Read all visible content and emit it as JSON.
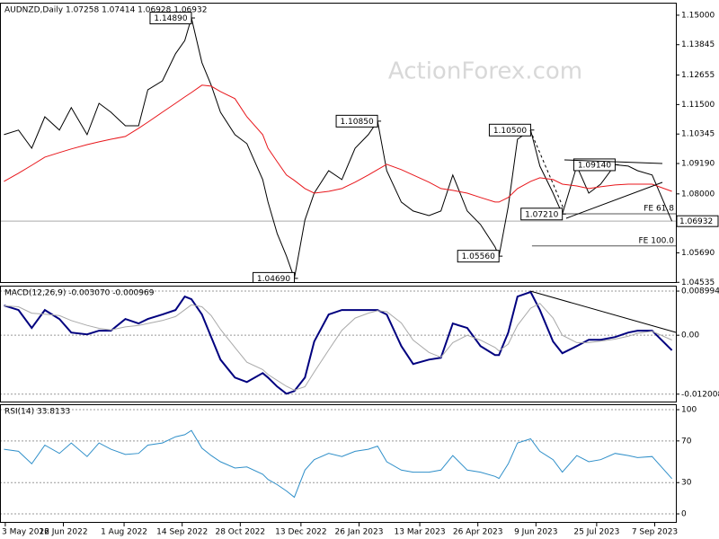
{
  "chart_data": [
    {
      "type": "line",
      "title": "AUDNZD,Daily  1.07258 1.07414 1.06928 1.06932",
      "watermark": "ActionForex.com",
      "x": [
        "2022-05-02",
        "2022-05-13",
        "2022-05-23",
        "2022-06-02",
        "2022-06-13",
        "2022-06-22",
        "2022-07-04",
        "2022-07-13",
        "2022-07-22",
        "2022-08-02",
        "2022-08-12",
        "2022-08-19",
        "2022-08-30",
        "2022-09-09",
        "2022-09-16",
        "2022-09-21",
        "2022-09-29",
        "2022-10-06",
        "2022-10-13",
        "2022-10-24",
        "2022-11-02",
        "2022-11-14",
        "2022-11-18",
        "2022-11-25",
        "2022-12-02",
        "2022-12-08",
        "2022-12-16",
        "2022-12-23",
        "2023-01-03",
        "2023-01-13",
        "2023-01-23",
        "2023-02-02",
        "2023-02-09",
        "2023-02-16",
        "2023-02-27",
        "2023-03-08",
        "2023-03-20",
        "2023-03-29",
        "2023-04-07",
        "2023-04-18",
        "2023-04-28",
        "2023-05-09",
        "2023-05-12",
        "2023-05-19",
        "2023-05-26",
        "2023-06-05",
        "2023-06-12",
        "2023-06-22",
        "2023-06-29",
        "2023-07-10",
        "2023-07-19",
        "2023-07-28",
        "2023-08-08",
        "2023-08-18",
        "2023-08-25",
        "2023-09-05",
        "2023-09-20"
      ],
      "series": [
        {
          "color": "#000000",
          "values": [
            1.1032,
            1.105,
            1.0979,
            1.1102,
            1.105,
            1.1138,
            1.1032,
            1.1155,
            1.112,
            1.1067,
            1.1067,
            1.1208,
            1.1243,
            1.1349,
            1.1401,
            1.1489,
            1.1314,
            1.1226,
            1.112,
            1.1032,
            1.0997,
            1.0856,
            1.0768,
            1.0645,
            1.0557,
            1.0469,
            1.0698,
            1.0803,
            1.0891,
            1.0856,
            1.0979,
            1.1032,
            1.1085,
            1.0891,
            1.0768,
            1.0733,
            1.0715,
            1.0733,
            1.0874,
            1.0733,
            1.068,
            1.0592,
            1.0556,
            1.075,
            1.1014,
            1.105,
            1.0909,
            1.0803,
            1.0721,
            1.0909,
            1.0803,
            1.0838,
            1.0914,
            1.0909,
            1.0891,
            1.0874,
            1.06932
          ]
        },
        {
          "color": "#e8161b",
          "values": [
            1.0849,
            1.0881,
            1.0912,
            1.0944,
            1.0962,
            1.0976,
            1.0993,
            1.1004,
            1.1014,
            1.1025,
            1.1057,
            1.1081,
            1.112,
            1.1155,
            1.118,
            1.1197,
            1.1226,
            1.1222,
            1.1201,
            1.1173,
            1.1102,
            1.1032,
            1.0979,
            1.0926,
            1.0874,
            1.0853,
            1.0821,
            1.0803,
            1.081,
            1.0821,
            1.0846,
            1.0874,
            1.0895,
            1.0916,
            1.0895,
            1.0874,
            1.0846,
            1.0821,
            1.0814,
            1.0803,
            1.0786,
            1.0768,
            1.0768,
            1.0786,
            1.0821,
            1.0849,
            1.0863,
            1.0856,
            1.0838,
            1.0831,
            1.0821,
            1.0828,
            1.0835,
            1.0838,
            1.0838,
            1.0838,
            1.081
          ]
        }
      ],
      "last_price": 1.06932,
      "annotations": [
        {
          "x": "2022-09-21",
          "value": 1.1489,
          "label": "1.14890"
        },
        {
          "x": "2022-12-08",
          "value": 1.0469,
          "label": "1.04690"
        },
        {
          "x": "2023-02-09",
          "value": 1.1085,
          "label": "1.10850"
        },
        {
          "x": "2023-05-12",
          "value": 1.0556,
          "label": "1.05560"
        },
        {
          "x": "2023-06-05",
          "value": 1.105,
          "label": "1.10500"
        },
        {
          "x": "2023-06-29",
          "value": 1.0721,
          "label": "1.07210"
        },
        {
          "x": "2023-08-08",
          "value": 1.0914,
          "label": "1.09140"
        }
      ],
      "fe_levels": [
        {
          "x": "2023-06-28",
          "value": 1.0722,
          "text": "FE 61.8"
        },
        {
          "x": "2023-06-06",
          "value": 1.0596,
          "text": "FE 100.0"
        }
      ],
      "xlim": [
        "2022-04-29",
        "2023-09-23"
      ],
      "ylim": [
        1.0451,
        1.1549
      ],
      "yticks": [
        {
          "value": 1.15,
          "label": "1.15000"
        },
        1.13845,
        1.12655,
        {
          "value": 1.115,
          "label": "1.11500"
        },
        1.10345,
        {
          "value": 1.0919,
          "label": "1.09190"
        },
        {
          "value": 1.08,
          "label": "1.08000"
        },
        {
          "value": 1.0569,
          "label": "1.05690"
        },
        1.04535
      ],
      "grid": false
    },
    {
      "type": "line",
      "title": "MACD(12,26,9) -0.003070 -0.000969",
      "x": [
        "2022-05-02",
        "2022-05-13",
        "2022-05-23",
        "2022-06-02",
        "2022-06-13",
        "2022-06-22",
        "2022-07-04",
        "2022-07-13",
        "2022-07-22",
        "2022-08-02",
        "2022-08-12",
        "2022-08-19",
        "2022-08-30",
        "2022-09-09",
        "2022-09-16",
        "2022-09-21",
        "2022-09-29",
        "2022-10-06",
        "2022-10-13",
        "2022-10-24",
        "2022-11-02",
        "2022-11-14",
        "2022-11-18",
        "2022-11-25",
        "2022-12-02",
        "2022-12-08",
        "2022-12-16",
        "2022-12-23",
        "2023-01-03",
        "2023-01-13",
        "2023-01-23",
        "2023-02-02",
        "2023-02-09",
        "2023-02-16",
        "2023-02-27",
        "2023-03-08",
        "2023-03-20",
        "2023-03-29",
        "2023-04-07",
        "2023-04-18",
        "2023-04-28",
        "2023-05-09",
        "2023-05-12",
        "2023-05-19",
        "2023-05-26",
        "2023-06-05",
        "2023-06-12",
        "2023-06-22",
        "2023-06-29",
        "2023-07-10",
        "2023-07-19",
        "2023-07-28",
        "2023-08-08",
        "2023-08-18",
        "2023-08-25",
        "2023-09-05",
        "2023-09-20"
      ],
      "series": [
        {
          "color": "#00007f",
          "values": [
            0.00606,
            0.00514,
            0.00147,
            0.00514,
            0.0033,
            0.00055,
            0.00018,
            0.00092,
            0.00092,
            0.0033,
            0.00239,
            0.0033,
            0.00422,
            0.00514,
            0.00789,
            0.00734,
            0.00422,
            -0.00037,
            -0.00496,
            -0.00863,
            -0.00954,
            -0.00771,
            -0.00863,
            -0.01046,
            -0.01193,
            -0.01138,
            -0.00863,
            -0.00128,
            0.00422,
            0.00514,
            0.00514,
            0.00514,
            0.00514,
            0.00422,
            -0.0022,
            -0.00587,
            -0.00496,
            -0.00459,
            0.00239,
            0.00147,
            -0.0022,
            -0.00404,
            -0.00404,
            0.00055,
            0.00789,
            0.00881,
            0.00514,
            -0.00128,
            -0.00367,
            -0.0022,
            -0.00092,
            -0.00092,
            -0.00037,
            0.00055,
            0.00092,
            0.00092,
            -0.00307
          ]
        },
        {
          "color": "#a9a9a9",
          "values": [
            0.006,
            0.0058,
            0.0045,
            0.0043,
            0.004,
            0.003,
            0.002,
            0.0014,
            0.0011,
            0.0017,
            0.002,
            0.0024,
            0.003,
            0.0038,
            0.0052,
            0.0062,
            0.0058,
            0.004,
            0.0012,
            -0.0025,
            -0.0055,
            -0.007,
            -0.008,
            -0.0092,
            -0.0104,
            -0.0112,
            -0.0105,
            -0.0075,
            -0.003,
            0.001,
            0.0035,
            0.0045,
            0.005,
            0.0048,
            0.0025,
            -0.001,
            -0.0035,
            -0.0045,
            -0.0015,
            0.0,
            -0.001,
            -0.0025,
            -0.0032,
            -0.0018,
            0.002,
            0.0055,
            0.0065,
            0.0035,
            0.0,
            -0.0015,
            -0.0015,
            -0.0012,
            -0.0008,
            -0.0002,
            0.0004,
            0.0008,
            -0.000969
          ]
        }
      ],
      "xlim": [
        "2022-04-29",
        "2023-09-23"
      ],
      "ylim": [
        -0.0137,
        0.0101
      ],
      "yticks": [
        0.008994,
        {
          "value": 0,
          "label": "0.00"
        },
        -0.012008
      ],
      "grid": true
    },
    {
      "type": "line",
      "title": "RSI(14) 33.8133",
      "x": [
        "2022-05-02",
        "2022-05-13",
        "2022-05-23",
        "2022-06-02",
        "2022-06-13",
        "2022-06-22",
        "2022-07-04",
        "2022-07-13",
        "2022-07-22",
        "2022-08-02",
        "2022-08-12",
        "2022-08-19",
        "2022-08-30",
        "2022-09-09",
        "2022-09-16",
        "2022-09-21",
        "2022-09-29",
        "2022-10-06",
        "2022-10-13",
        "2022-10-24",
        "2022-11-02",
        "2022-11-14",
        "2022-11-18",
        "2022-11-25",
        "2022-12-02",
        "2022-12-08",
        "2022-12-16",
        "2022-12-23",
        "2023-01-03",
        "2023-01-13",
        "2023-01-23",
        "2023-02-02",
        "2023-02-09",
        "2023-02-16",
        "2023-02-27",
        "2023-03-08",
        "2023-03-20",
        "2023-03-29",
        "2023-04-07",
        "2023-04-18",
        "2023-04-28",
        "2023-05-09",
        "2023-05-12",
        "2023-05-19",
        "2023-05-26",
        "2023-06-05",
        "2023-06-12",
        "2023-06-22",
        "2023-06-29",
        "2023-07-10",
        "2023-07-19",
        "2023-07-28",
        "2023-08-08",
        "2023-08-18",
        "2023-08-25",
        "2023-09-05",
        "2023-09-20"
      ],
      "series": [
        {
          "color": "#2f8fc9",
          "values": [
            62,
            60,
            48,
            66,
            58,
            68,
            55,
            68,
            62,
            57,
            58,
            66,
            68,
            74,
            76,
            80,
            63,
            56,
            50,
            44,
            45,
            38,
            33,
            28,
            22,
            16,
            42,
            52,
            58,
            55,
            60,
            62,
            65,
            50,
            42,
            40,
            40,
            42,
            56,
            42,
            40,
            36,
            34,
            48,
            68,
            72,
            60,
            52,
            40,
            56,
            50,
            52,
            58,
            56,
            54,
            55,
            33.8133
          ]
        }
      ],
      "xlim": [
        "2022-04-29",
        "2023-09-23"
      ],
      "ylim": [
        -8.6,
        105.2
      ],
      "yticks": [
        0,
        30,
        70,
        100
      ],
      "xticks": [
        {
          "value": "2022-05-03",
          "label": "3 May 2022"
        },
        {
          "value": "2022-06-16",
          "label": "16 Jun 2022"
        },
        {
          "value": "2022-08-01",
          "label": "1 Aug 2022"
        },
        {
          "value": "2022-09-14",
          "label": "14 Sep 2022"
        },
        {
          "value": "2022-10-28",
          "label": "28 Oct 2022"
        },
        {
          "value": "2022-12-13",
          "label": "13 Dec 2022"
        },
        {
          "value": "2023-01-26",
          "label": "26 Jan 2023"
        },
        {
          "value": "2023-03-13",
          "label": "13 Mar 2023"
        },
        {
          "value": "2023-04-26",
          "label": "26 Apr 2023"
        },
        {
          "value": "2023-06-09",
          "label": "9 Jun 2023"
        },
        {
          "value": "2023-07-25",
          "label": "25 Jul 2023"
        },
        {
          "value": "2023-09-07",
          "label": "7 Sep 2023"
        }
      ],
      "grid": true
    }
  ]
}
